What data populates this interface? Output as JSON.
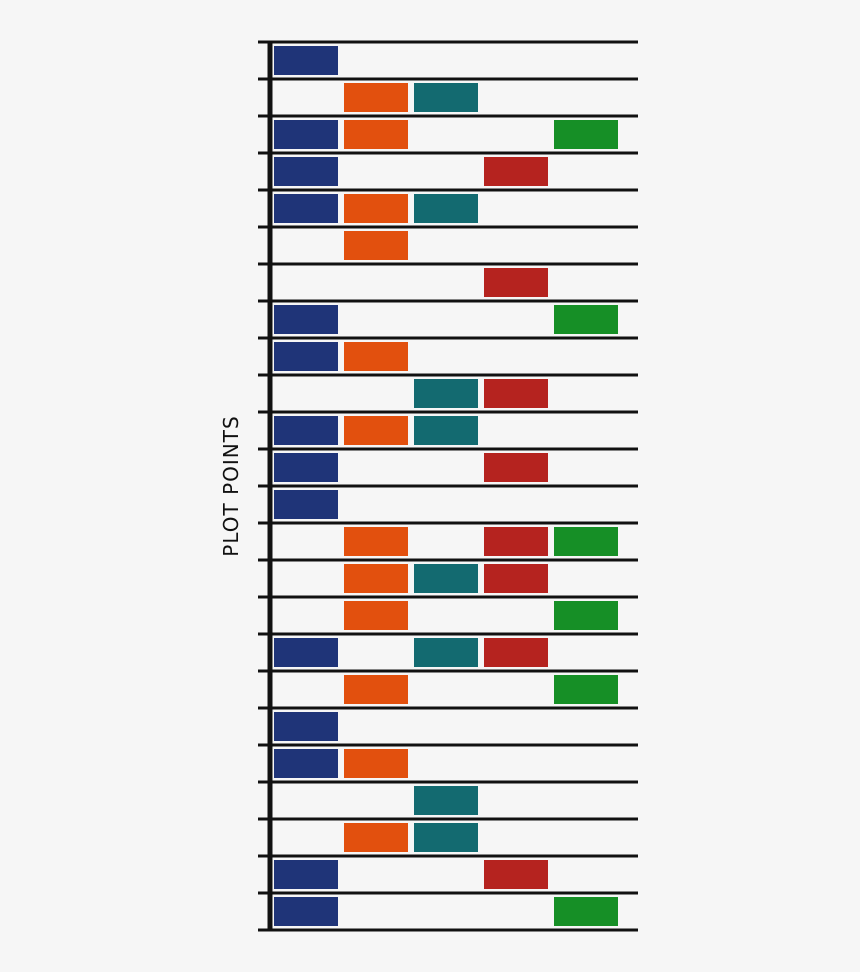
{
  "chart_data": {
    "type": "table",
    "ylabel": "PLOT POINTS",
    "grid": true,
    "legend": "none",
    "columns": [
      {
        "key": "blue",
        "color": "#1f3478"
      },
      {
        "key": "orange",
        "color": "#e2500e"
      },
      {
        "key": "teal",
        "color": "#136a70"
      },
      {
        "key": "red",
        "color": "#b5231f"
      },
      {
        "key": "green",
        "color": "#168f26"
      }
    ],
    "rows": [
      [
        1,
        0,
        0,
        0,
        0
      ],
      [
        0,
        1,
        1,
        0,
        0
      ],
      [
        1,
        1,
        0,
        0,
        1
      ],
      [
        1,
        0,
        0,
        1,
        0
      ],
      [
        1,
        1,
        1,
        0,
        0
      ],
      [
        0,
        1,
        0,
        0,
        0
      ],
      [
        0,
        0,
        0,
        1,
        0
      ],
      [
        1,
        0,
        0,
        0,
        1
      ],
      [
        1,
        1,
        0,
        0,
        0
      ],
      [
        0,
        0,
        1,
        1,
        0
      ],
      [
        1,
        1,
        1,
        0,
        0
      ],
      [
        1,
        0,
        0,
        1,
        0
      ],
      [
        1,
        0,
        0,
        0,
        0
      ],
      [
        0,
        1,
        0,
        1,
        1
      ],
      [
        0,
        1,
        1,
        1,
        0
      ],
      [
        0,
        1,
        0,
        0,
        1
      ],
      [
        1,
        0,
        1,
        1,
        0
      ],
      [
        0,
        1,
        0,
        0,
        1
      ],
      [
        1,
        0,
        0,
        0,
        0
      ],
      [
        1,
        1,
        0,
        0,
        0
      ],
      [
        0,
        0,
        1,
        0,
        0
      ],
      [
        0,
        1,
        1,
        0,
        0
      ],
      [
        1,
        0,
        0,
        1,
        0
      ],
      [
        1,
        0,
        0,
        0,
        1
      ]
    ]
  }
}
